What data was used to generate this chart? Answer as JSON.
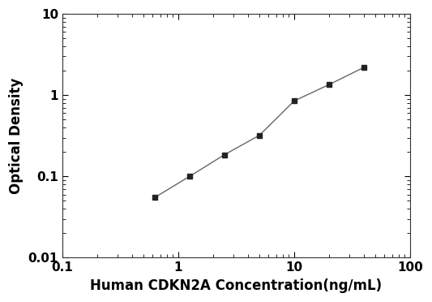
{
  "x": [
    0.625,
    1.25,
    2.5,
    5,
    10,
    20,
    40
  ],
  "y": [
    0.055,
    0.1,
    0.185,
    0.32,
    0.85,
    1.35,
    2.2
  ],
  "xlabel": "Human CDKN2A Concentration(ng/mL)",
  "ylabel": "Optical Density",
  "xlim": [
    0.1,
    100
  ],
  "ylim": [
    0.01,
    10
  ],
  "xticks": [
    0.1,
    1,
    10,
    100
  ],
  "xtick_labels": [
    "0.1",
    "1",
    "10",
    "100"
  ],
  "yticks": [
    0.01,
    0.1,
    1,
    10
  ],
  "ytick_labels": [
    "0.01",
    "0.1",
    "1",
    "10"
  ],
  "line_color": "#666666",
  "marker_color": "#222222",
  "marker": "s",
  "marker_size": 5,
  "line_width": 1.0,
  "background_color": "#ffffff",
  "xlabel_fontsize": 12,
  "ylabel_fontsize": 12,
  "tick_labelsize": 11
}
